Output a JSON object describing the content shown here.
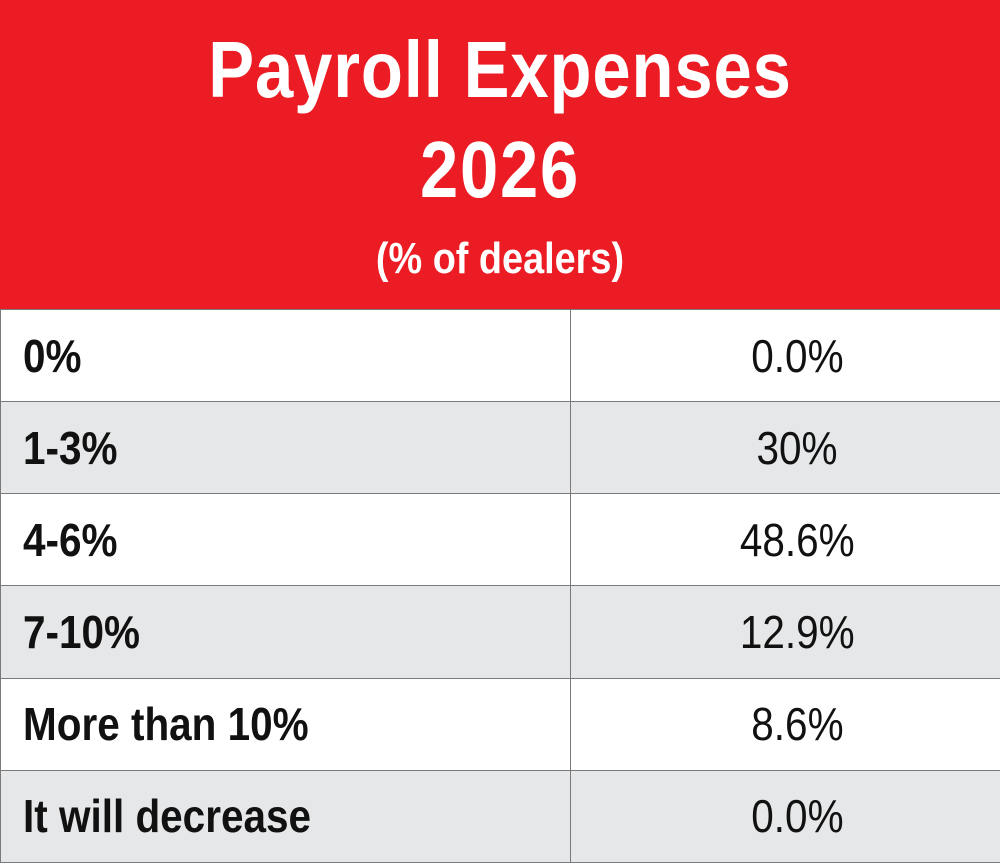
{
  "colors": {
    "header_background": "#ec1c24",
    "header_text": "#ffffff",
    "row_alt_background": "#e6e7e8",
    "row_background": "#ffffff",
    "border": "#7a7a7a",
    "text": "#111111"
  },
  "chart_data": {
    "type": "table",
    "title_line1": "Payroll Expenses",
    "title_line2": "2026",
    "subtitle": "(% of dealers)",
    "rows": [
      {
        "label": "0%",
        "value": "0.0%"
      },
      {
        "label": "1-3%",
        "value": "30%"
      },
      {
        "label": "4-6%",
        "value": "48.6%"
      },
      {
        "label": "7-10%",
        "value": "12.9%"
      },
      {
        "label": "More than 10%",
        "value": "8.6%"
      },
      {
        "label": "It will decrease",
        "value": "0.0%"
      }
    ]
  }
}
